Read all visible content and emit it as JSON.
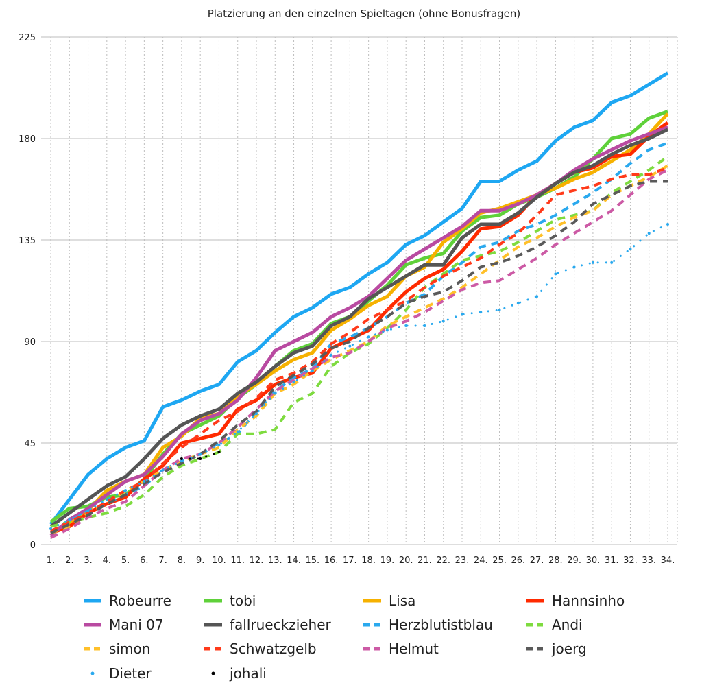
{
  "chart_data": {
    "type": "line",
    "title": "Platzierung an den einzelnen Spieltagen (ohne Bonusfragen)",
    "xlabel": "",
    "ylabel": "",
    "x": [
      "1.",
      "2.",
      "3.",
      "4.",
      "5.",
      "6.",
      "7.",
      "8.",
      "9.",
      "10.",
      "11.",
      "12.",
      "13.",
      "14.",
      "15.",
      "16.",
      "17.",
      "18.",
      "19.",
      "20.",
      "21.",
      "22.",
      "23.",
      "24.",
      "25.",
      "26.",
      "27.",
      "28.",
      "29.",
      "30.",
      "31.",
      "32.",
      "33.",
      "34."
    ],
    "ylim": [
      0,
      225
    ],
    "yticks": [
      0,
      45,
      90,
      135,
      180,
      225
    ],
    "grid": {
      "horizontal": true,
      "vertical": "dotted"
    },
    "legend_position": "bottom",
    "series": [
      {
        "name": "Robeurre",
        "color": "#1ea7f2",
        "style": "solid",
        "values": [
          9,
          20,
          31,
          38,
          43,
          46,
          61,
          64,
          68,
          71,
          81,
          86,
          94,
          101,
          105,
          111,
          114,
          120,
          125,
          133,
          137,
          143,
          149,
          161,
          161,
          166,
          170,
          179,
          185,
          188,
          196,
          199,
          204,
          209
        ]
      },
      {
        "name": "tobi",
        "color": "#5fd13a",
        "style": "solid",
        "values": [
          10,
          16,
          17,
          21,
          22,
          29,
          40,
          49,
          53,
          57,
          65,
          71,
          79,
          86,
          89,
          98,
          101,
          108,
          115,
          124,
          127,
          129,
          139,
          145,
          146,
          151,
          154,
          158,
          163,
          171,
          180,
          182,
          189,
          192
        ]
      },
      {
        "name": "Lisa",
        "color": "#f6b100",
        "style": "solid",
        "values": [
          6,
          9,
          15,
          24,
          28,
          31,
          43,
          48,
          56,
          58,
          66,
          71,
          77,
          82,
          85,
          95,
          100,
          106,
          110,
          119,
          123,
          134,
          140,
          147,
          149,
          152,
          155,
          158,
          162,
          165,
          170,
          175,
          182,
          191
        ]
      },
      {
        "name": "Hannsinho",
        "color": "#ff2a00",
        "style": "solid",
        "values": [
          5,
          8,
          14,
          18,
          21,
          29,
          35,
          45,
          47,
          49,
          60,
          64,
          71,
          74,
          76,
          87,
          91,
          95,
          104,
          112,
          118,
          122,
          130,
          140,
          141,
          146,
          155,
          160,
          165,
          167,
          172,
          173,
          181,
          187
        ]
      },
      {
        "name": "Mani 07",
        "color": "#b94aa1",
        "style": "solid",
        "values": [
          4,
          11,
          16,
          22,
          28,
          31,
          39,
          49,
          55,
          58,
          64,
          74,
          86,
          90,
          94,
          101,
          105,
          110,
          118,
          126,
          131,
          136,
          141,
          148,
          148,
          151,
          155,
          160,
          166,
          171,
          175,
          179,
          182,
          185
        ]
      },
      {
        "name": "fallrueckzieher",
        "color": "#555555",
        "style": "solid",
        "values": [
          8,
          14,
          20,
          26,
          30,
          38,
          47,
          53,
          57,
          60,
          67,
          72,
          79,
          85,
          88,
          97,
          101,
          109,
          114,
          119,
          124,
          124,
          136,
          142,
          142,
          147,
          154,
          160,
          165,
          168,
          173,
          177,
          180,
          184
        ]
      },
      {
        "name": "Herzblutistblau",
        "color": "#2aa9ee",
        "style": "dashed",
        "values": [
          6,
          10,
          15,
          18,
          22,
          26,
          33,
          37,
          40,
          45,
          49,
          59,
          68,
          74,
          78,
          89,
          92,
          96,
          101,
          107,
          111,
          119,
          125,
          132,
          134,
          139,
          142,
          146,
          151,
          156,
          162,
          169,
          175,
          178
        ]
      },
      {
        "name": "Andi",
        "color": "#7edb3f",
        "style": "dashed",
        "values": [
          8,
          10,
          12,
          14,
          17,
          22,
          30,
          35,
          38,
          41,
          49,
          49,
          51,
          63,
          67,
          79,
          85,
          89,
          96,
          104,
          114,
          120,
          126,
          128,
          130,
          134,
          139,
          144,
          146,
          148,
          156,
          161,
          166,
          172
        ]
      },
      {
        "name": "simon",
        "color": "#ffc02a",
        "style": "dashed",
        "values": [
          5,
          8,
          14,
          18,
          24,
          28,
          33,
          37,
          40,
          43,
          51,
          57,
          67,
          71,
          77,
          82,
          86,
          90,
          97,
          101,
          105,
          109,
          114,
          120,
          126,
          132,
          136,
          141,
          145,
          148,
          155,
          159,
          163,
          168
        ]
      },
      {
        "name": "Schwatzgelb",
        "color": "#ff3a1a",
        "style": "dashed",
        "values": [
          6,
          10,
          14,
          19,
          24,
          28,
          36,
          43,
          49,
          55,
          59,
          65,
          73,
          76,
          81,
          89,
          94,
          100,
          104,
          108,
          114,
          119,
          123,
          127,
          133,
          138,
          146,
          155,
          157,
          159,
          162,
          164,
          164,
          167
        ]
      },
      {
        "name": "Helmut",
        "color": "#cc5aa5",
        "style": "dashed",
        "values": [
          3,
          7,
          12,
          16,
          19,
          26,
          33,
          38,
          40,
          45,
          52,
          60,
          68,
          73,
          78,
          83,
          85,
          90,
          96,
          99,
          103,
          108,
          113,
          116,
          117,
          122,
          127,
          133,
          138,
          143,
          148,
          155,
          162,
          166
        ]
      },
      {
        "name": "joerg",
        "color": "#5a5a5a",
        "style": "dashed",
        "values": [
          5,
          9,
          13,
          18,
          22,
          27,
          32,
          36,
          40,
          46,
          53,
          59,
          70,
          75,
          80,
          87,
          90,
          96,
          101,
          107,
          110,
          112,
          117,
          123,
          125,
          128,
          132,
          137,
          143,
          151,
          155,
          159,
          161,
          161
        ]
      },
      {
        "name": "Dieter",
        "color": "#2aa9ee",
        "style": "dotted",
        "values": [
          7,
          11,
          15,
          20,
          24,
          28,
          33,
          37,
          40,
          44,
          50,
          58,
          67,
          72,
          77,
          84,
          88,
          92,
          95,
          97,
          97,
          99,
          102,
          103,
          104,
          107,
          110,
          120,
          123,
          125,
          125,
          131,
          138,
          142
        ]
      },
      {
        "name": "johali",
        "color": "#000000",
        "style": "dotted",
        "values": [
          null,
          null,
          null,
          null,
          null,
          null,
          null,
          38,
          38,
          41,
          null,
          null,
          null,
          null,
          null,
          null,
          null,
          null,
          null,
          null,
          null,
          null,
          null,
          null,
          null,
          null,
          null,
          null,
          null,
          null,
          null,
          null,
          null,
          null
        ]
      }
    ]
  }
}
